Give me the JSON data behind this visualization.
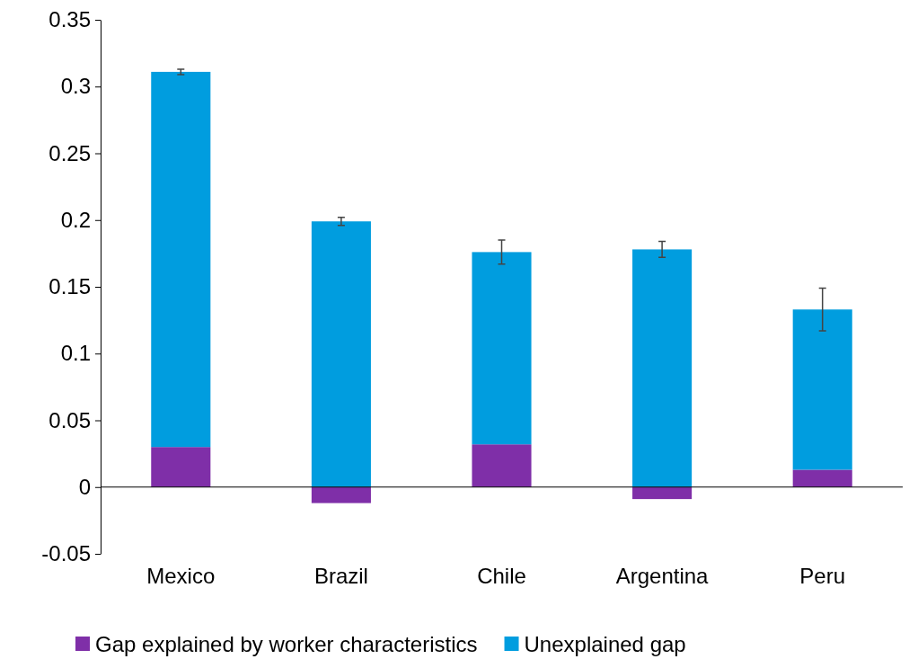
{
  "chart_data": {
    "type": "bar",
    "stacked": true,
    "categories": [
      "Mexico",
      "Brazil",
      "Chile",
      "Argentina",
      "Peru"
    ],
    "series": [
      {
        "name": "Gap explained by worker characteristics",
        "color": "#7f2fa8",
        "values": [
          0.03,
          -0.012,
          0.032,
          -0.009,
          0.013
        ]
      },
      {
        "name": "Unexplained gap",
        "color": "#009ddf",
        "values": [
          0.281,
          0.199,
          0.144,
          0.178,
          0.12
        ],
        "errors": [
          0.002,
          0.003,
          0.009,
          0.006,
          0.016
        ]
      }
    ],
    "ylim": [
      -0.05,
      0.35
    ],
    "yticks": [
      -0.05,
      0,
      0.05,
      0.1,
      0.15,
      0.2,
      0.25,
      0.3,
      0.35
    ],
    "legend": "bottom"
  }
}
